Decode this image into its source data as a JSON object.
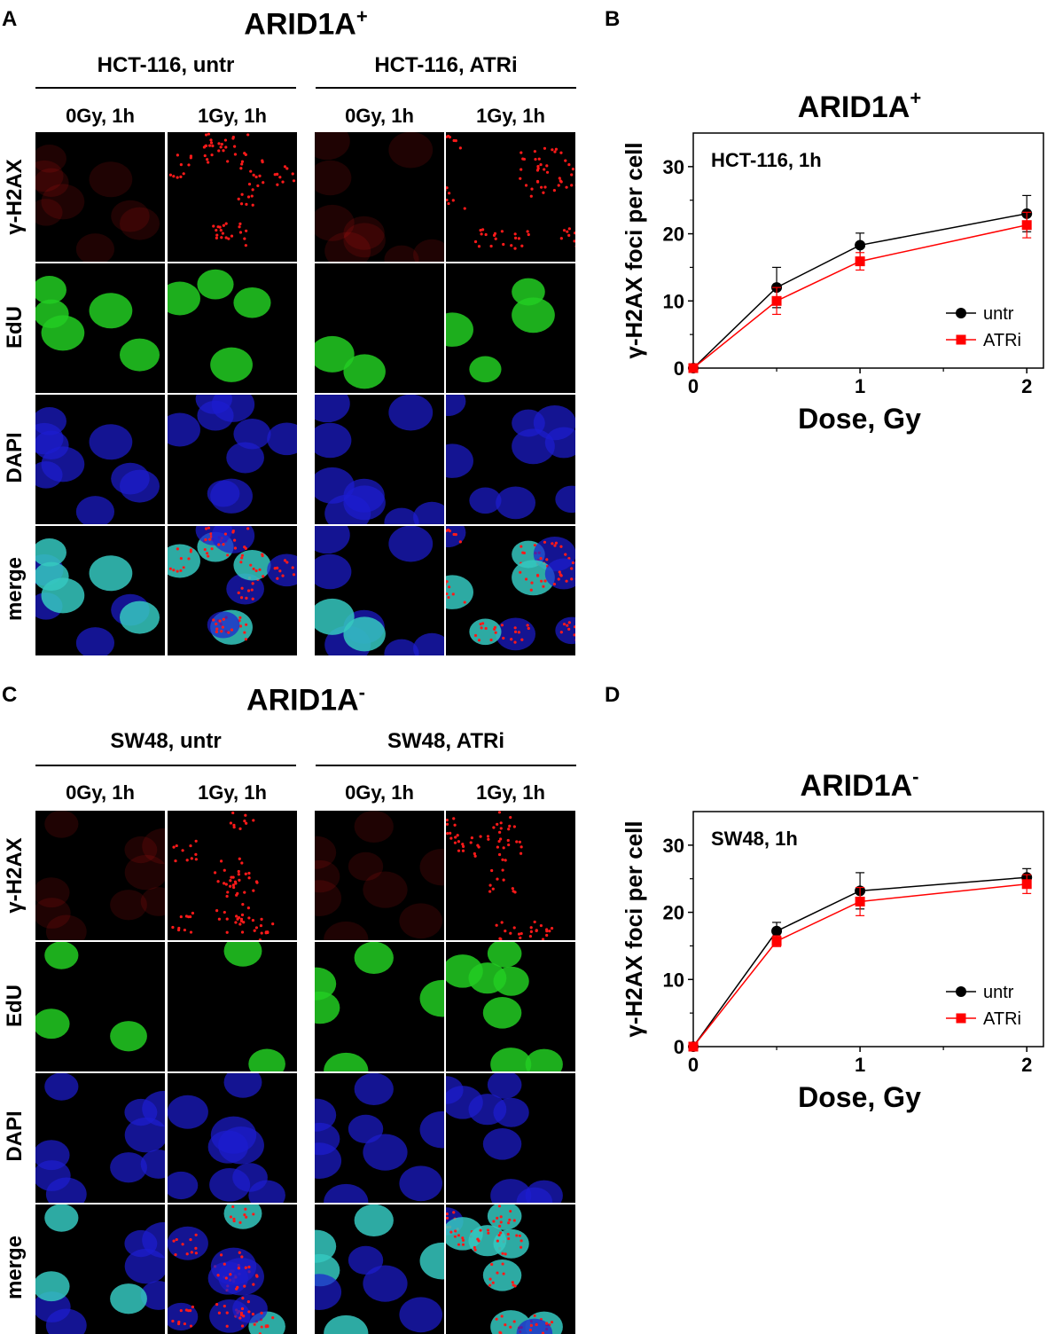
{
  "panels": [
    {
      "letter": "A",
      "title_main": "ARID1A",
      "title_sup": "+",
      "conditions": [
        "HCT-116, untr",
        "HCT-116, ATRi"
      ],
      "subcolumns": [
        "0Gy, 1h",
        "1Gy, 1h",
        "0Gy, 1h",
        "1Gy, 1h"
      ],
      "rows": [
        "γ-H2AX",
        "EdU",
        "DAPI",
        "merge"
      ]
    },
    {
      "letter": "C",
      "title_main": "ARID1A",
      "title_sup": "-",
      "conditions": [
        "SW48, untr",
        "SW48, ATRi"
      ],
      "subcolumns": [
        "0Gy, 1h",
        "1Gy, 1h",
        "0Gy, 1h",
        "1Gy, 1h"
      ],
      "rows": [
        "γ-H2AX",
        "EdU",
        "DAPI",
        "merge"
      ]
    }
  ],
  "colors": {
    "red_channel": "#ff1a1a",
    "green_channel": "#22cc22",
    "blue_channel": "#1c1cd0",
    "cyan_merge": "#35c8c0",
    "untr_series": "#000000",
    "atri_series": "#ff0000"
  },
  "chart_data": [
    {
      "letter": "B",
      "type": "line",
      "title_main": "ARID1A",
      "title_sup": "+",
      "annotation": "HCT-116, 1h",
      "xlabel": "Dose, Gy",
      "ylabel": "γ-H2AX foci per cell",
      "xlim": [
        0,
        2.1
      ],
      "ylim": [
        0,
        35
      ],
      "xticks": [
        0,
        1,
        2
      ],
      "yticks": [
        0,
        10,
        20,
        30
      ],
      "legend_position": "lower-right",
      "series": [
        {
          "name": "untr",
          "marker": "circle",
          "color": "#000000",
          "x": [
            0,
            0.5,
            1,
            2
          ],
          "y": [
            0,
            12,
            18.3,
            23
          ],
          "err": [
            0,
            3,
            1.8,
            2.7
          ]
        },
        {
          "name": "ATRi",
          "marker": "square",
          "color": "#ff0000",
          "x": [
            0,
            0.5,
            1,
            2
          ],
          "y": [
            0,
            10,
            15.9,
            21.3
          ],
          "err": [
            0,
            2,
            1.3,
            1.9
          ]
        }
      ]
    },
    {
      "letter": "D",
      "type": "line",
      "title_main": "ARID1A",
      "title_sup": "-",
      "annotation": "SW48, 1h",
      "xlabel": "Dose, Gy",
      "ylabel": "γ-H2AX foci per cell",
      "xlim": [
        0,
        2.1
      ],
      "ylim": [
        0,
        35
      ],
      "xticks": [
        0,
        1,
        2
      ],
      "yticks": [
        0,
        10,
        20,
        30
      ],
      "legend_position": "lower-right",
      "series": [
        {
          "name": "untr",
          "marker": "circle",
          "color": "#000000",
          "x": [
            0,
            0.5,
            1,
            2
          ],
          "y": [
            0,
            17.2,
            23.2,
            25.2
          ],
          "err": [
            0,
            1.3,
            2.7,
            1.3
          ]
        },
        {
          "name": "ATRi",
          "marker": "square",
          "color": "#ff0000",
          "x": [
            0,
            0.5,
            1,
            2
          ],
          "y": [
            0,
            15.7,
            21.6,
            24.2
          ],
          "err": [
            0,
            0.8,
            2.1,
            1.4
          ]
        }
      ]
    }
  ]
}
